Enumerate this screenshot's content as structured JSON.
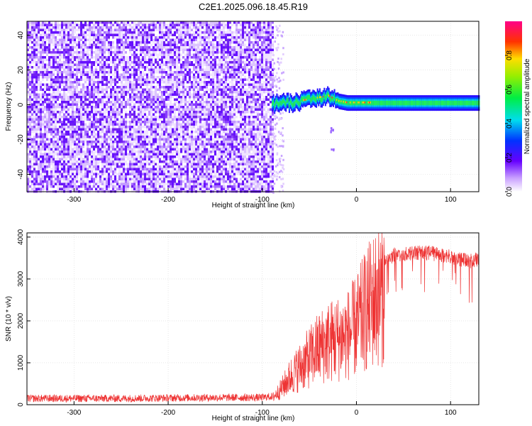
{
  "title": "C2E1.2025.096.18.45.R19",
  "chart_data": [
    {
      "type": "heatmap",
      "xlabel": "Height of straight line (km)",
      "ylabel": "Frequency (Hz)",
      "xlim": [
        -350,
        130
      ],
      "ylim": [
        -50,
        48
      ],
      "xticks": [
        -300,
        -200,
        -100,
        0,
        100
      ],
      "yticks": [
        -40,
        -20,
        0,
        20,
        40
      ],
      "noise_region_x": [
        -350,
        -90
      ],
      "signal_trace": {
        "x": [
          -90,
          -80,
          -70,
          -60,
          -50,
          -40,
          -30,
          -20,
          -10,
          0,
          20,
          40,
          60,
          80,
          100,
          120,
          130
        ],
        "frequency": [
          0,
          2,
          1,
          2,
          3,
          4,
          5,
          2,
          1,
          1,
          1,
          1,
          1,
          1,
          1,
          1,
          1
        ]
      },
      "colorbar": {
        "label": "Normalized spectral amplitude",
        "ticks": [
          0.0,
          0.2,
          0.4,
          0.6,
          0.8
        ],
        "range": [
          0,
          1
        ]
      },
      "grid": true
    },
    {
      "type": "line",
      "xlabel": "Height of straight line (km)",
      "ylabel": "SNR (10 * v/v)",
      "xlim": [
        -350,
        130
      ],
      "ylim": [
        0,
        4100
      ],
      "xticks": [
        -300,
        -200,
        -100,
        0,
        100
      ],
      "yticks": [
        0,
        1000,
        2000,
        3000,
        4000
      ],
      "color": "#ee3333",
      "grid": true,
      "series": [
        {
          "x": [
            -350,
            -300,
            -250,
            -200,
            -150,
            -100,
            -90,
            -80,
            -70,
            -60,
            -50,
            -40,
            -30,
            -20,
            -10,
            0,
            10,
            20,
            30,
            40,
            60,
            80,
            100,
            110,
            120,
            130
          ],
          "values": [
            150,
            150,
            150,
            160,
            170,
            170,
            200,
            500,
            900,
            1200,
            1500,
            1800,
            2000,
            2100,
            2200,
            2500,
            3000,
            3400,
            3600,
            3750,
            3800,
            3800,
            3700,
            3650,
            3600,
            3650
          ]
        }
      ]
    }
  ]
}
